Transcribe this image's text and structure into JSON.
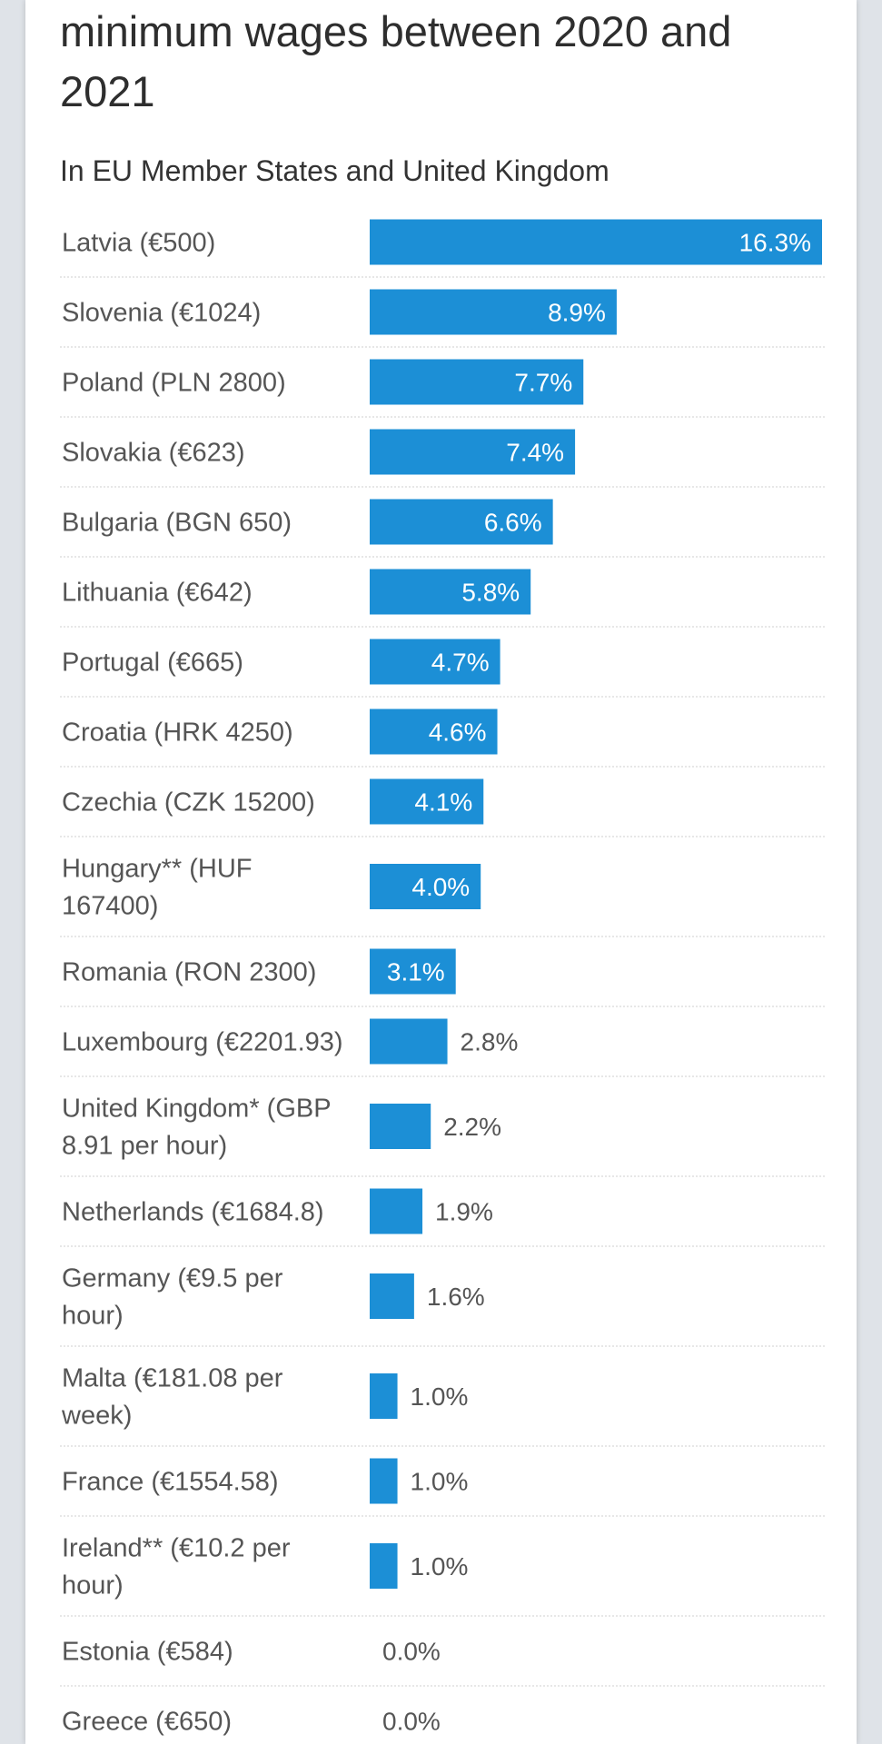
{
  "header": {
    "title": "minimum wages between 2020 and 2021",
    "subtitle": "In EU Member States and United Kingdom"
  },
  "colors": {
    "bar": "#1c8fd6",
    "label_inside": "#ffffff",
    "label_outside": "#555555",
    "separator": "#cfcfcf"
  },
  "chart_data": {
    "type": "bar",
    "orientation": "horizontal",
    "title": "minimum wages between 2020 and 2021",
    "subtitle": "In EU Member States and United Kingdom",
    "unit": "%",
    "xlim": [
      0,
      16.3
    ],
    "grid": false,
    "categories": [
      "Latvia (€500)",
      "Slovenia (€1024)",
      "Poland (PLN 2800)",
      "Slovakia (€623)",
      "Bulgaria (BGN 650)",
      "Lithuania (€642)",
      "Portugal (€665)",
      "Croatia (HRK 4250)",
      "Czechia (CZK 15200)",
      "Hungary** (HUF 167400)",
      "Romania (RON 2300)",
      "Luxembourg (€2201.93)",
      "United Kingdom* (GBP 8.91 per hour)",
      "Netherlands (€1684.8)",
      "Germany (€9.5 per hour)",
      "Malta (€181.08 per week)",
      "France (€1554.58)",
      "Ireland** (€10.2 per hour)",
      "Estonia (€584)",
      "Greece (€650)"
    ],
    "category_lines": [
      [
        "Latvia (€500)"
      ],
      [
        "Slovenia (€1024)"
      ],
      [
        "Poland (PLN 2800)"
      ],
      [
        "Slovakia (€623)"
      ],
      [
        "Bulgaria (BGN 650)"
      ],
      [
        "Lithuania (€642)"
      ],
      [
        "Portugal (€665)"
      ],
      [
        "Croatia (HRK 4250)"
      ],
      [
        "Czechia (CZK 15200)"
      ],
      [
        "Hungary** (HUF",
        "167400)"
      ],
      [
        "Romania (RON 2300)"
      ],
      [
        "Luxembourg (€2201.93)"
      ],
      [
        "United Kingdom* (GBP",
        "8.91 per hour)"
      ],
      [
        "Netherlands (€1684.8)"
      ],
      [
        "Germany (€9.5 per",
        "hour)"
      ],
      [
        "Malta (€181.08 per",
        "week)"
      ],
      [
        "France (€1554.58)"
      ],
      [
        "Ireland** (€10.2 per",
        "hour)"
      ],
      [
        "Estonia (€584)"
      ],
      [
        "Greece (€650)"
      ]
    ],
    "values": [
      16.3,
      8.9,
      7.7,
      7.4,
      6.6,
      5.8,
      4.7,
      4.6,
      4.1,
      4.0,
      3.1,
      2.8,
      2.2,
      1.9,
      1.6,
      1.0,
      1.0,
      1.0,
      0.0,
      0.0
    ],
    "value_labels": [
      "16.3%",
      "8.9%",
      "7.7%",
      "7.4%",
      "6.6%",
      "5.8%",
      "4.7%",
      "4.6%",
      "4.1%",
      "4.0%",
      "3.1%",
      "2.8%",
      "2.2%",
      "1.9%",
      "1.6%",
      "1.0%",
      "1.0%",
      "1.0%",
      "0.0%",
      "0.0%"
    ]
  }
}
